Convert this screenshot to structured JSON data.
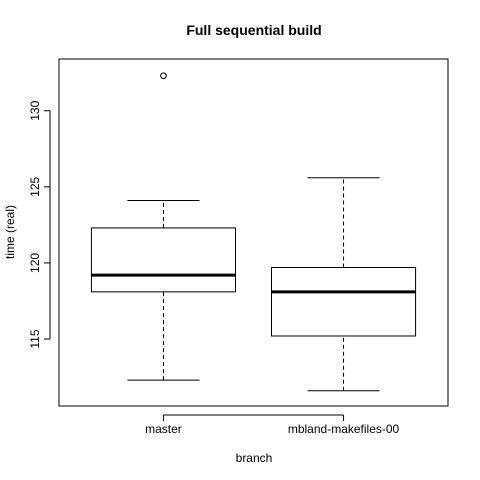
{
  "chart_data": {
    "type": "boxplot",
    "title": "Full sequential build",
    "xlabel": "branch",
    "ylabel": "time (real)",
    "ylim": [
      110.6,
      133.4
    ],
    "yticks": [
      115,
      120,
      125,
      130
    ],
    "grid": false,
    "categories": [
      "master",
      "mbland-makefiles-00"
    ],
    "boxes": [
      {
        "category": "master",
        "whisker_low": 112.3,
        "q1": 118.1,
        "median": 119.2,
        "q3": 122.3,
        "whisker_high": 124.1,
        "outliers": [
          132.3
        ]
      },
      {
        "category": "mbland-makefiles-00",
        "whisker_low": 111.6,
        "q1": 115.2,
        "median": 118.1,
        "q3": 119.7,
        "whisker_high": 125.6,
        "outliers": []
      }
    ]
  }
}
